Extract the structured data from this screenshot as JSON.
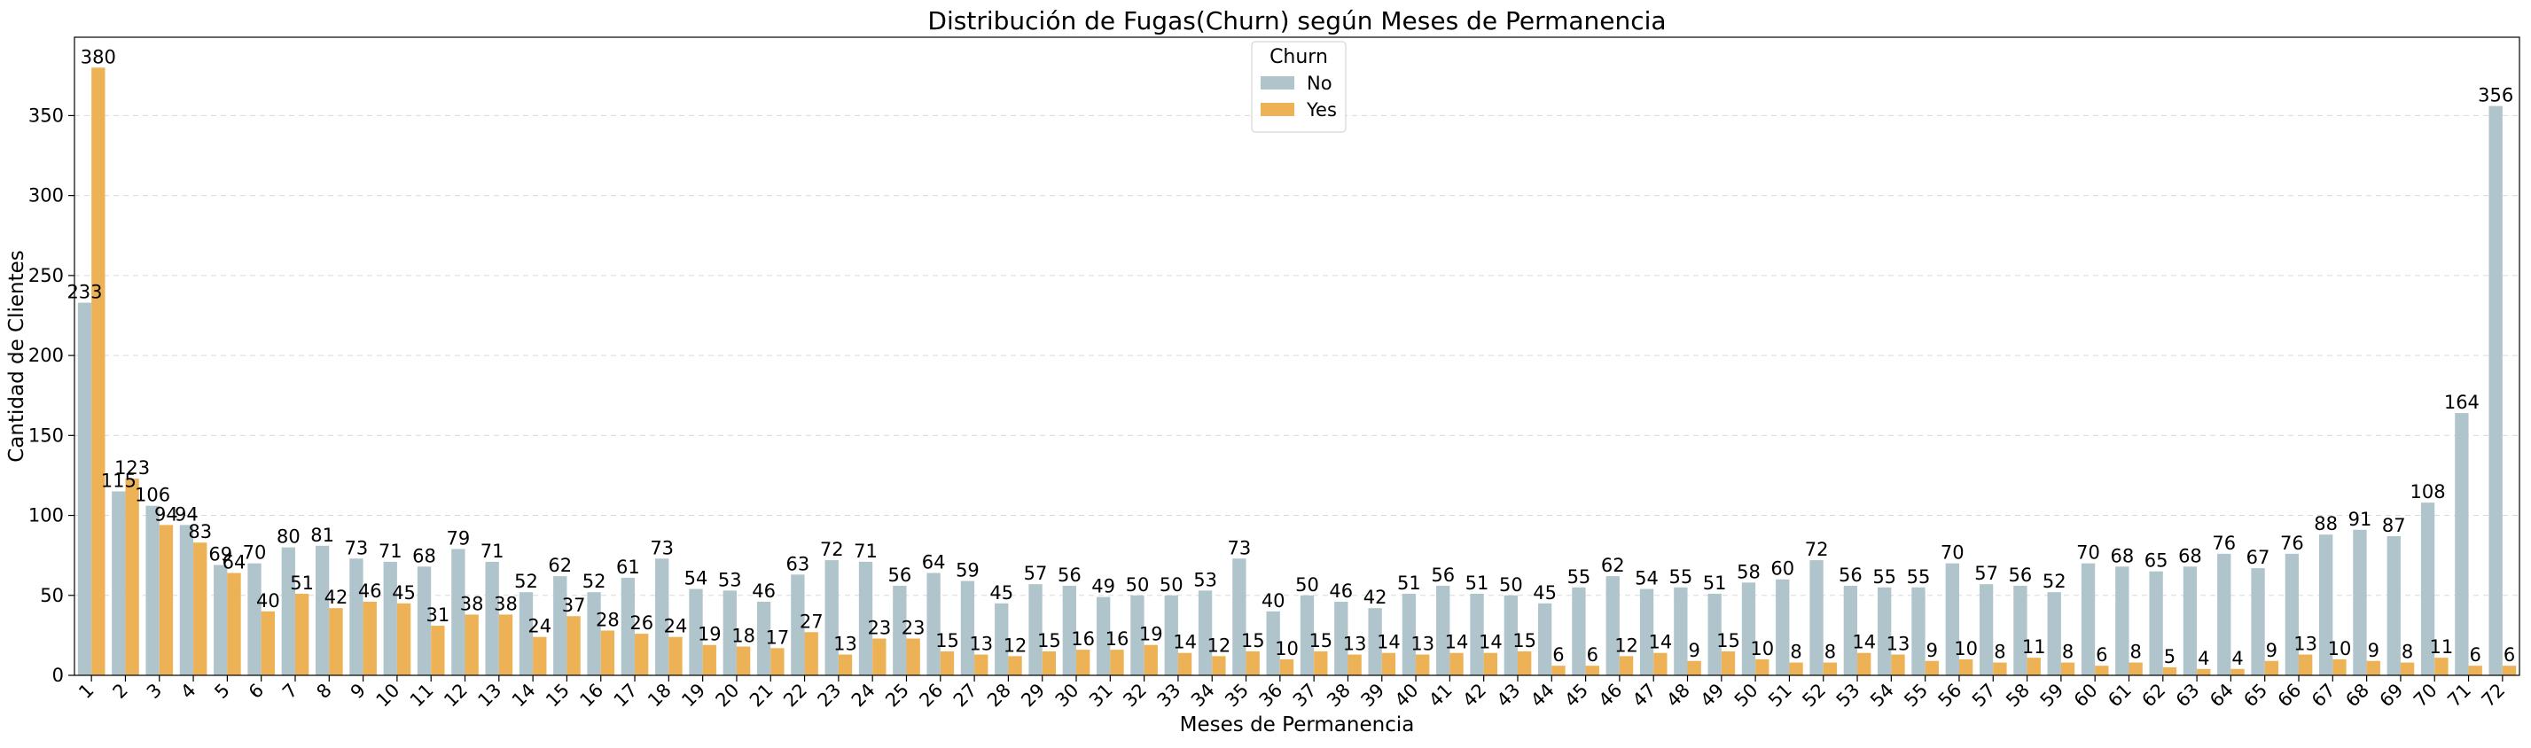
{
  "chart_data": {
    "type": "bar",
    "title": "Distribución de Fugas(Churn) según Meses de Permanencia",
    "xlabel": "Meses de Permanencia",
    "ylabel": "Cantidad de Clientes",
    "ylim": [
      0,
      399
    ],
    "yticks": [
      0,
      50,
      100,
      150,
      200,
      250,
      300,
      350
    ],
    "grid": "horizontal dashed",
    "legend": {
      "title": "Churn",
      "placement": "top-center"
    },
    "categories": [
      "1",
      "2",
      "3",
      "4",
      "5",
      "6",
      "7",
      "8",
      "9",
      "10",
      "11",
      "12",
      "13",
      "14",
      "15",
      "16",
      "17",
      "18",
      "19",
      "20",
      "21",
      "22",
      "23",
      "24",
      "25",
      "26",
      "27",
      "28",
      "29",
      "30",
      "31",
      "32",
      "33",
      "34",
      "35",
      "36",
      "37",
      "38",
      "39",
      "40",
      "41",
      "42",
      "43",
      "44",
      "45",
      "46",
      "47",
      "48",
      "49",
      "50",
      "51",
      "52",
      "53",
      "54",
      "55",
      "56",
      "57",
      "58",
      "59",
      "60",
      "61",
      "62",
      "63",
      "64",
      "65",
      "66",
      "67",
      "68",
      "69",
      "70",
      "71",
      "72"
    ],
    "series": [
      {
        "name": "No",
        "color": "#b0c4cc",
        "values": [
          233,
          115,
          106,
          94,
          69,
          70,
          80,
          81,
          73,
          71,
          68,
          79,
          71,
          52,
          62,
          52,
          61,
          73,
          54,
          53,
          46,
          63,
          72,
          71,
          56,
          64,
          59,
          45,
          57,
          56,
          49,
          50,
          50,
          53,
          73,
          40,
          50,
          46,
          42,
          51,
          56,
          51,
          50,
          45,
          55,
          62,
          54,
          55,
          51,
          58,
          60,
          72,
          56,
          55,
          55,
          70,
          57,
          56,
          52,
          70,
          68,
          65,
          68,
          76,
          67,
          76,
          88,
          91,
          87,
          108,
          164,
          356
        ]
      },
      {
        "name": "Yes",
        "color": "#edb256",
        "values": [
          380,
          123,
          94,
          83,
          64,
          40,
          51,
          42,
          46,
          45,
          31,
          38,
          38,
          24,
          37,
          28,
          26,
          24,
          19,
          18,
          17,
          27,
          13,
          23,
          23,
          15,
          13,
          12,
          15,
          16,
          16,
          19,
          14,
          12,
          15,
          10,
          15,
          13,
          14,
          13,
          14,
          14,
          15,
          6,
          6,
          12,
          14,
          9,
          15,
          10,
          8,
          8,
          14,
          13,
          9,
          10,
          8,
          11,
          8,
          6,
          8,
          5,
          4,
          4,
          9,
          13,
          10,
          9,
          8,
          11,
          6,
          6
        ]
      }
    ]
  }
}
